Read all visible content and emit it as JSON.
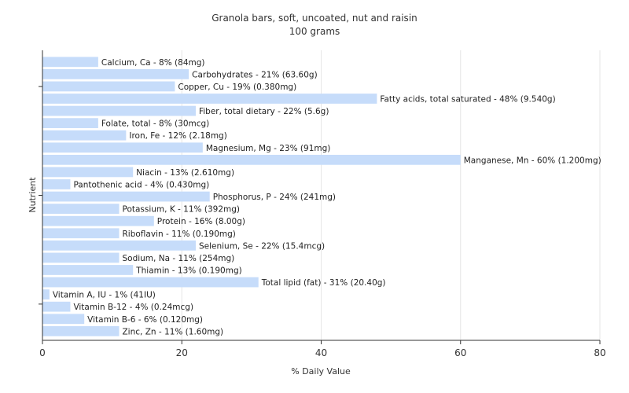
{
  "chart_data": {
    "type": "bar",
    "orientation": "horizontal",
    "title": "Granola bars, soft, uncoated, nut and raisin",
    "subtitle": "100 grams",
    "xlabel": "% Daily Value",
    "ylabel": "Nutrient",
    "xlim": [
      0,
      80
    ],
    "xticks": [
      0,
      20,
      40,
      60,
      80
    ],
    "grid": true,
    "bar_color": "#c6dcfa",
    "categories": [
      "Calcium, Ca",
      "Carbohydrates",
      "Copper, Cu",
      "Fatty acids, total saturated",
      "Fiber, total dietary",
      "Folate, total",
      "Iron, Fe",
      "Magnesium, Mg",
      "Manganese, Mn",
      "Niacin",
      "Pantothenic acid",
      "Phosphorus, P",
      "Potassium, K",
      "Protein",
      "Riboflavin",
      "Selenium, Se",
      "Sodium, Na",
      "Thiamin",
      "Total lipid (fat)",
      "Vitamin A, IU",
      "Vitamin B-12",
      "Vitamin B-6",
      "Zinc, Zn"
    ],
    "values": [
      8,
      21,
      19,
      48,
      22,
      8,
      12,
      23,
      60,
      13,
      4,
      24,
      11,
      16,
      11,
      22,
      11,
      13,
      31,
      1,
      4,
      6,
      11
    ],
    "labels": [
      "Calcium, Ca - 8% (84mg)",
      "Carbohydrates - 21% (63.60g)",
      "Copper, Cu - 19% (0.380mg)",
      "Fatty acids, total saturated - 48% (9.540g)",
      "Fiber, total dietary - 22% (5.6g)",
      "Folate, total - 8% (30mcg)",
      "Iron, Fe - 12% (2.18mg)",
      "Magnesium, Mg - 23% (91mg)",
      "Manganese, Mn - 60% (1.200mg)",
      "Niacin - 13% (2.610mg)",
      "Pantothenic acid - 4% (0.430mg)",
      "Phosphorus, P - 24% (241mg)",
      "Potassium, K - 11% (392mg)",
      "Protein - 16% (8.00g)",
      "Riboflavin - 11% (0.190mg)",
      "Selenium, Se - 22% (15.4mcg)",
      "Sodium, Na - 11% (254mg)",
      "Thiamin - 13% (0.190mg)",
      "Total lipid (fat) - 31% (20.40g)",
      "Vitamin A, IU - 1% (41IU)",
      "Vitamin B-12 - 4% (0.24mcg)",
      "Vitamin B-6 - 6% (0.120mg)",
      "Zinc, Zn - 11% (1.60mg)"
    ]
  }
}
